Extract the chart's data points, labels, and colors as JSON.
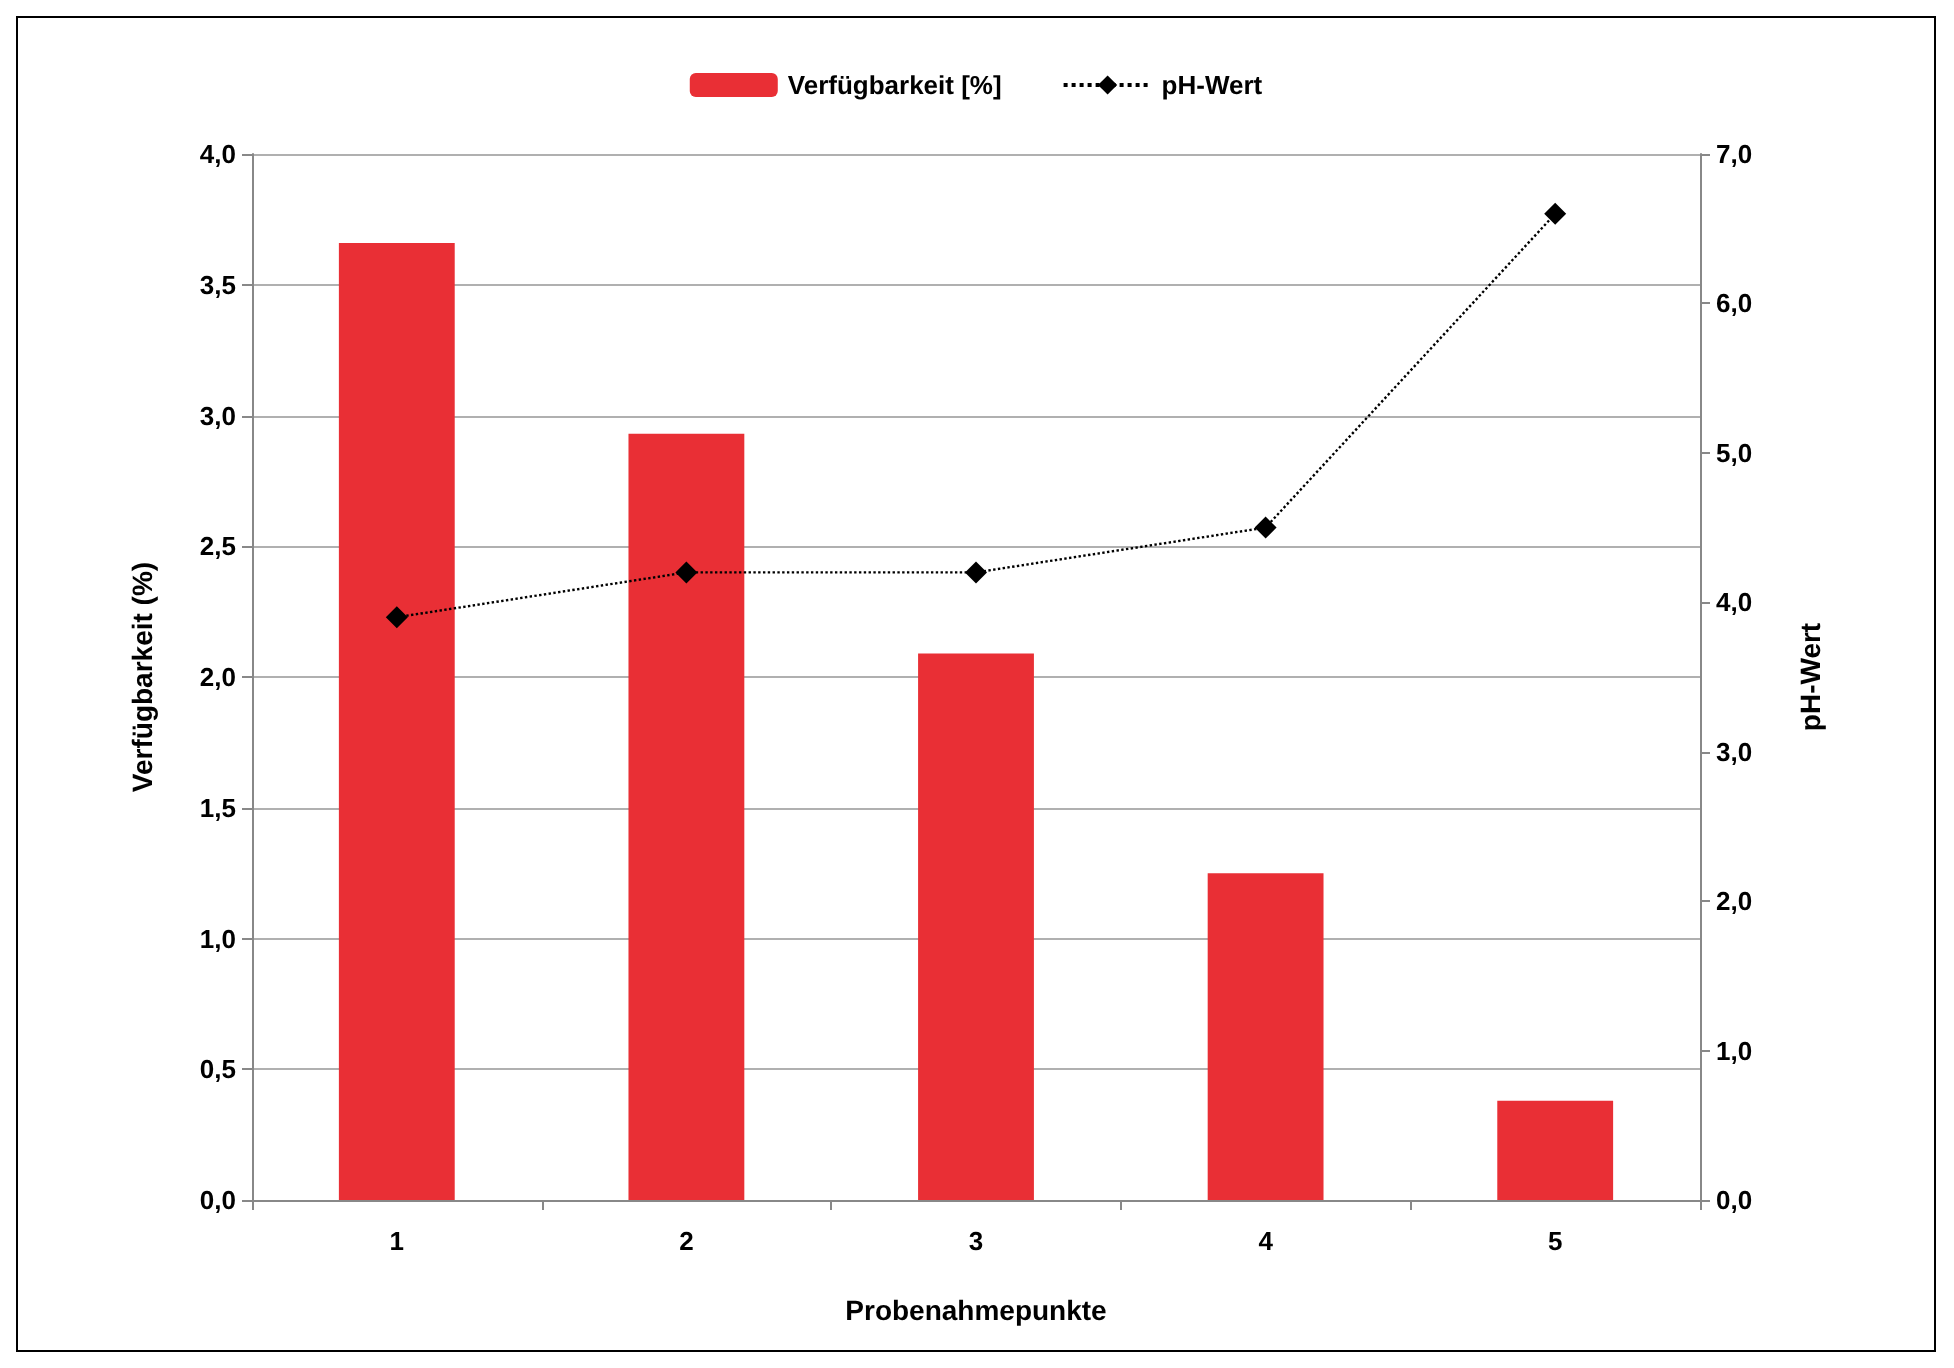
{
  "chart_data": {
    "type": "bar",
    "xlabel": "Probenahmepunkte",
    "ylabel": "Verfügbarkeit (%)",
    "y2label": "pH-Wert",
    "categories": [
      "1",
      "2",
      "3",
      "4",
      "5"
    ],
    "series": [
      {
        "name": "Verfügbarkeit [%]",
        "color": "#e92f35",
        "values": [
          3.66,
          2.93,
          2.09,
          1.25,
          0.38
        ]
      },
      {
        "name": "pH-Wert",
        "type": "line",
        "axis": "y2",
        "color": "#000000",
        "marker": "diamond",
        "line_style": "dotted",
        "values": [
          3.9,
          4.2,
          4.2,
          4.5,
          6.6
        ]
      }
    ],
    "ylim": [
      0,
      4
    ],
    "yticks": [
      {
        "value": 0,
        "label": "0,0"
      },
      {
        "value": 0.5,
        "label": "0,5"
      },
      {
        "value": 1,
        "label": "1,0"
      },
      {
        "value": 1.5,
        "label": "1,5"
      },
      {
        "value": 2,
        "label": "2,0"
      },
      {
        "value": 2.5,
        "label": "2,5"
      },
      {
        "value": 3,
        "label": "3,0"
      },
      {
        "value": 3.5,
        "label": "3,5"
      },
      {
        "value": 4,
        "label": "4,0"
      }
    ],
    "y2lim": [
      0,
      7
    ],
    "y2ticks": [
      {
        "value": 0,
        "label": "0,0"
      },
      {
        "value": 1,
        "label": "1,0"
      },
      {
        "value": 2,
        "label": "2,0"
      },
      {
        "value": 3,
        "label": "3,0"
      },
      {
        "value": 4,
        "label": "4,0"
      },
      {
        "value": 5,
        "label": "5,0"
      },
      {
        "value": 6,
        "label": "6,0"
      },
      {
        "value": 7,
        "label": "7,0"
      }
    ],
    "grid": "y",
    "legend": "top"
  }
}
